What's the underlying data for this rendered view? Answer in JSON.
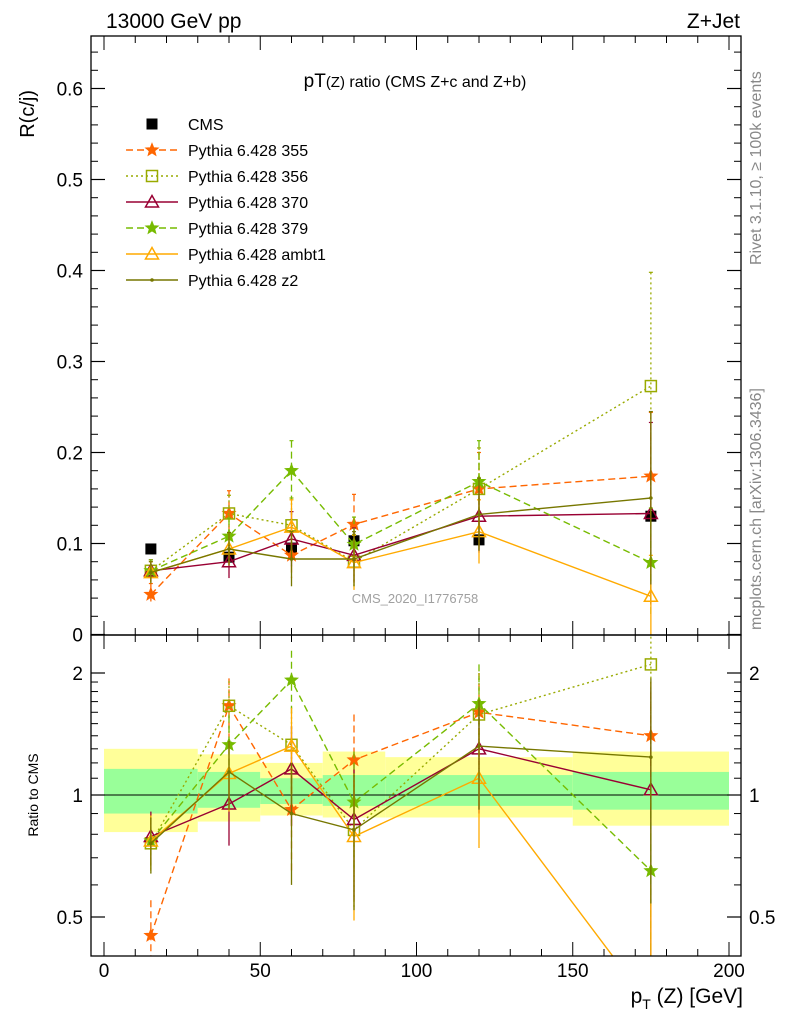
{
  "header": {
    "energy_label": "13000 GeV pp",
    "process_label": "Z+Jet",
    "side_rivet": "Rivet 3.1.10, ≥ 100k events",
    "side_mcplots": "mcplots.cern.ch [arXiv:1306.3436]",
    "analysis_id": "CMS_2020_I1776758"
  },
  "chart_data": [
    {
      "type": "line",
      "panel": "main",
      "title_main": "pT",
      "title_sub": "(Z)",
      "title_rest": " ratio (CMS  Z+c and Z+b)",
      "ylabel": "R(c/j)",
      "ylim": [
        0,
        0.66
      ],
      "yticks": [
        0,
        0.1,
        0.2,
        0.3,
        0.4,
        0.5,
        0.6
      ],
      "ytick_labels": [
        "0",
        "0.1",
        "0.2",
        "0.3",
        "0.4",
        "0.5",
        "0.6"
      ],
      "xlim": [
        -5,
        202
      ],
      "x": [
        15,
        40,
        60,
        80,
        120,
        175
      ],
      "legend_position": "top-left",
      "series": [
        {
          "name": "CMS",
          "color": "#000000",
          "marker": "square-filled",
          "line": "none",
          "values": [
            0.094,
            0.085,
            0.095,
            0.103,
            0.104,
            0.13
          ]
        },
        {
          "name": "Pythia 6.428 355",
          "color": "#ff6600",
          "marker": "star",
          "line": "dashed",
          "values": [
            0.044,
            0.133,
            0.087,
            0.121,
            0.16,
            0.174
          ],
          "err": [
            0.012,
            0.025,
            0.025,
            0.033,
            0.04,
            0.07
          ]
        },
        {
          "name": "Pythia 6.428 356",
          "color": "#99aa00",
          "marker": "square-open",
          "line": "dotted",
          "values": [
            0.07,
            0.133,
            0.12,
            0.08,
            0.16,
            0.273
          ],
          "err": [
            0.012,
            0.02,
            0.03,
            0.03,
            0.045,
            0.125
          ]
        },
        {
          "name": "Pythia 6.428 370",
          "color": "#990033",
          "marker": "triangle-open",
          "line": "solid",
          "values": [
            0.07,
            0.08,
            0.105,
            0.087,
            0.13,
            0.133
          ],
          "err": [
            0.012,
            0.018,
            0.03,
            0.03,
            0.04,
            0.1
          ]
        },
        {
          "name": "Pythia 6.428 379",
          "color": "#77bb00",
          "marker": "star",
          "line": "dashed",
          "values": [
            0.07,
            0.108,
            0.18,
            0.099,
            0.168,
            0.079
          ],
          "err": [
            0.012,
            0.02,
            0.033,
            0.03,
            0.045,
            0.06
          ]
        },
        {
          "name": "Pythia 6.428 ambt1",
          "color": "#ffaa00",
          "marker": "triangle-open",
          "line": "solid",
          "values": [
            0.068,
            0.094,
            0.118,
            0.079,
            0.113,
            0.042
          ],
          "err": [
            0.012,
            0.018,
            0.03,
            0.03,
            0.035,
            0.045
          ]
        },
        {
          "name": "Pythia 6.428 z2",
          "color": "#777700",
          "marker": "dot",
          "line": "solid",
          "values": [
            0.068,
            0.094,
            0.083,
            0.083,
            0.132,
            0.15
          ],
          "err": [
            0.012,
            0.018,
            0.03,
            0.03,
            0.04,
            0.095
          ]
        }
      ]
    },
    {
      "type": "line",
      "panel": "ratio",
      "ylabel": "Ratio to CMS",
      "xlabel_main": "p",
      "xlabel_sub": "T",
      "xlabel_rest": " (Z) [GeV]",
      "ylim": [
        0.42,
        2.25
      ],
      "yticks": [
        0.5,
        1,
        2
      ],
      "ytick_labels": [
        "0.5",
        "1",
        "2"
      ],
      "xticks": [
        0,
        50,
        100,
        150,
        200
      ],
      "xtick_labels": [
        "0",
        "50",
        "100",
        "150",
        "200"
      ],
      "xlim": [
        -5,
        202
      ],
      "x": [
        15,
        40,
        60,
        80,
        120,
        175
      ],
      "uncertainty_bands": {
        "colors": {
          "stat": "#99ff99",
          "total": "#ffff99"
        },
        "bins": [
          {
            "x0": 0,
            "x1": 30,
            "inner": [
              0.9,
              1.16
            ],
            "outer": [
              0.81,
              1.3
            ]
          },
          {
            "x0": 30,
            "x1": 50,
            "inner": [
              0.93,
              1.14
            ],
            "outer": [
              0.86,
              1.26
            ]
          },
          {
            "x0": 50,
            "x1": 70,
            "inner": [
              0.95,
              1.1
            ],
            "outer": [
              0.89,
              1.2
            ]
          },
          {
            "x0": 70,
            "x1": 90,
            "inner": [
              0.94,
              1.12
            ],
            "outer": [
              0.88,
              1.28
            ]
          },
          {
            "x0": 90,
            "x1": 150,
            "inner": [
              0.94,
              1.12
            ],
            "outer": [
              0.88,
              1.24
            ]
          },
          {
            "x0": 150,
            "x1": 200,
            "inner": [
              0.92,
              1.14
            ],
            "outer": [
              0.84,
              1.28
            ]
          }
        ]
      },
      "series": [
        {
          "name": "Pythia 6.428 355",
          "values": [
            0.45,
            1.66,
            0.92,
            1.22,
            1.6,
            1.4
          ],
          "err": [
            0.1,
            0.28,
            0.27,
            0.36,
            0.4,
            0.5
          ]
        },
        {
          "name": "Pythia 6.428 356",
          "values": [
            0.76,
            1.66,
            1.33,
            0.82,
            1.58,
            2.1
          ],
          "err": [
            0.12,
            0.25,
            0.32,
            0.3,
            0.42,
            0.9
          ]
        },
        {
          "name": "Pythia 6.428 370",
          "values": [
            0.79,
            0.95,
            1.16,
            0.87,
            1.3,
            1.03
          ],
          "err": [
            0.12,
            0.2,
            0.32,
            0.32,
            0.4,
            0.8
          ]
        },
        {
          "name": "Pythia 6.428 379",
          "values": [
            0.77,
            1.33,
            1.92,
            0.96,
            1.68,
            0.65
          ],
          "err": [
            0.12,
            0.25,
            0.35,
            0.32,
            0.42,
            0.45
          ]
        },
        {
          "name": "Pythia 6.428 ambt1",
          "values": [
            0.77,
            1.13,
            1.32,
            0.79,
            1.1,
            0.3
          ],
          "err": [
            0.12,
            0.22,
            0.32,
            0.3,
            0.36,
            0.3
          ]
        },
        {
          "name": "Pythia 6.428 z2",
          "values": [
            0.76,
            1.14,
            0.9,
            0.82,
            1.32,
            1.24
          ],
          "err": [
            0.12,
            0.22,
            0.3,
            0.3,
            0.4,
            0.7
          ]
        }
      ]
    }
  ]
}
